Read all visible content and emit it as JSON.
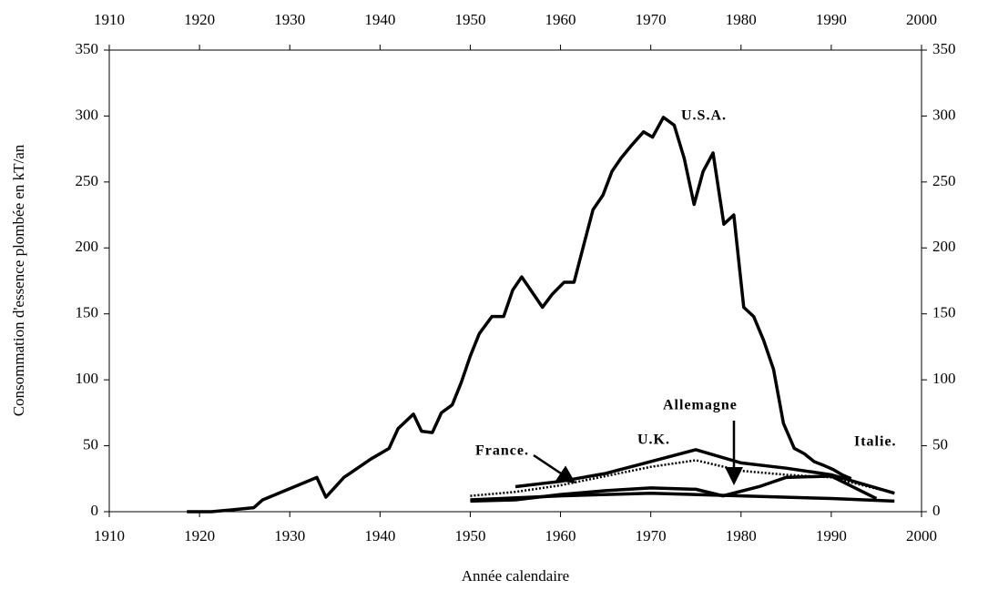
{
  "chart_data": {
    "type": "line",
    "xlabel": "Année calendaire",
    "ylabel": "Consommation d'essence plombée en kT/an",
    "xlim": [
      1910,
      2000
    ],
    "xticks": [
      1910,
      1920,
      1930,
      1940,
      1950,
      1960,
      1970,
      1980,
      1990,
      2000
    ],
    "ylim": [
      0,
      350
    ],
    "yticks": [
      0,
      50,
      100,
      150,
      200,
      250,
      300,
      350
    ],
    "annotations": [
      "U.S.A.",
      "France.",
      "U.K.",
      "Allemagne",
      "Italie."
    ],
    "series": [
      {
        "name": "U.S.A.",
        "color": "#000000",
        "style": "solid",
        "x": [
          1918.6,
          1921.3,
          1923,
          1926,
          1927,
          1933,
          1934,
          1936,
          1939,
          1941,
          1942,
          1943.7,
          1944.6,
          1945.8,
          1946.8,
          1948,
          1949,
          1950,
          1951,
          1952.4,
          1953.7,
          1954.7,
          1955.7,
          1956.9,
          1958,
          1959.1,
          1960.4,
          1961.5,
          1962.6,
          1963.6,
          1964.7,
          1965.7,
          1966.7,
          1967.9,
          1969.2,
          1970.2,
          1971.4,
          1972.6,
          1973.7,
          1974.8,
          1975.8,
          1976.9,
          1978.1,
          1979.2,
          1980.3,
          1981.4,
          1982.5,
          1983.6,
          1984.7,
          1985.9,
          1987,
          1988.1,
          1989.2,
          1990.2,
          1991.2,
          1992.2
        ],
        "values": [
          0,
          0,
          1,
          3,
          9,
          26,
          11,
          26,
          40,
          48,
          63,
          74,
          61,
          60,
          75,
          81,
          98,
          118,
          135,
          148,
          148,
          168,
          178,
          166,
          155,
          165,
          174,
          174,
          203,
          229,
          240,
          258,
          268,
          278,
          288,
          284,
          299,
          293,
          268,
          233,
          258,
          272,
          218,
          225,
          155,
          148,
          130,
          108,
          67,
          48,
          44,
          38,
          35,
          32,
          28,
          25
        ]
      },
      {
        "name": "France.",
        "color": "#000000",
        "style": "solid",
        "x": [
          1955,
          1960,
          1965,
          1970,
          1975,
          1980,
          1985,
          1990,
          1993,
          1997
        ],
        "values": [
          19,
          23,
          29,
          38,
          47,
          37,
          33,
          28,
          22,
          14
        ]
      },
      {
        "name": "U.K.",
        "color": "#000000",
        "style": "dotted",
        "x": [
          1950,
          1955,
          1960,
          1965,
          1970,
          1975,
          1980,
          1985,
          1990,
          1997
        ],
        "values": [
          12,
          15,
          20,
          27,
          34,
          39,
          31,
          28,
          26,
          14
        ]
      },
      {
        "name": "Allemagne",
        "color": "#000000",
        "style": "solid",
        "x": [
          1950,
          1955,
          1960,
          1965,
          1970,
          1975,
          1978,
          1982,
          1985,
          1990,
          1995
        ],
        "values": [
          8,
          9,
          13,
          16,
          18,
          17,
          12,
          19,
          26,
          27,
          10
        ]
      },
      {
        "name": "Italie.",
        "color": "#000000",
        "style": "solid",
        "x": [
          1950,
          1960,
          1970,
          1980,
          1990,
          1997
        ],
        "values": [
          9,
          12,
          14,
          12,
          10,
          8
        ]
      }
    ]
  }
}
